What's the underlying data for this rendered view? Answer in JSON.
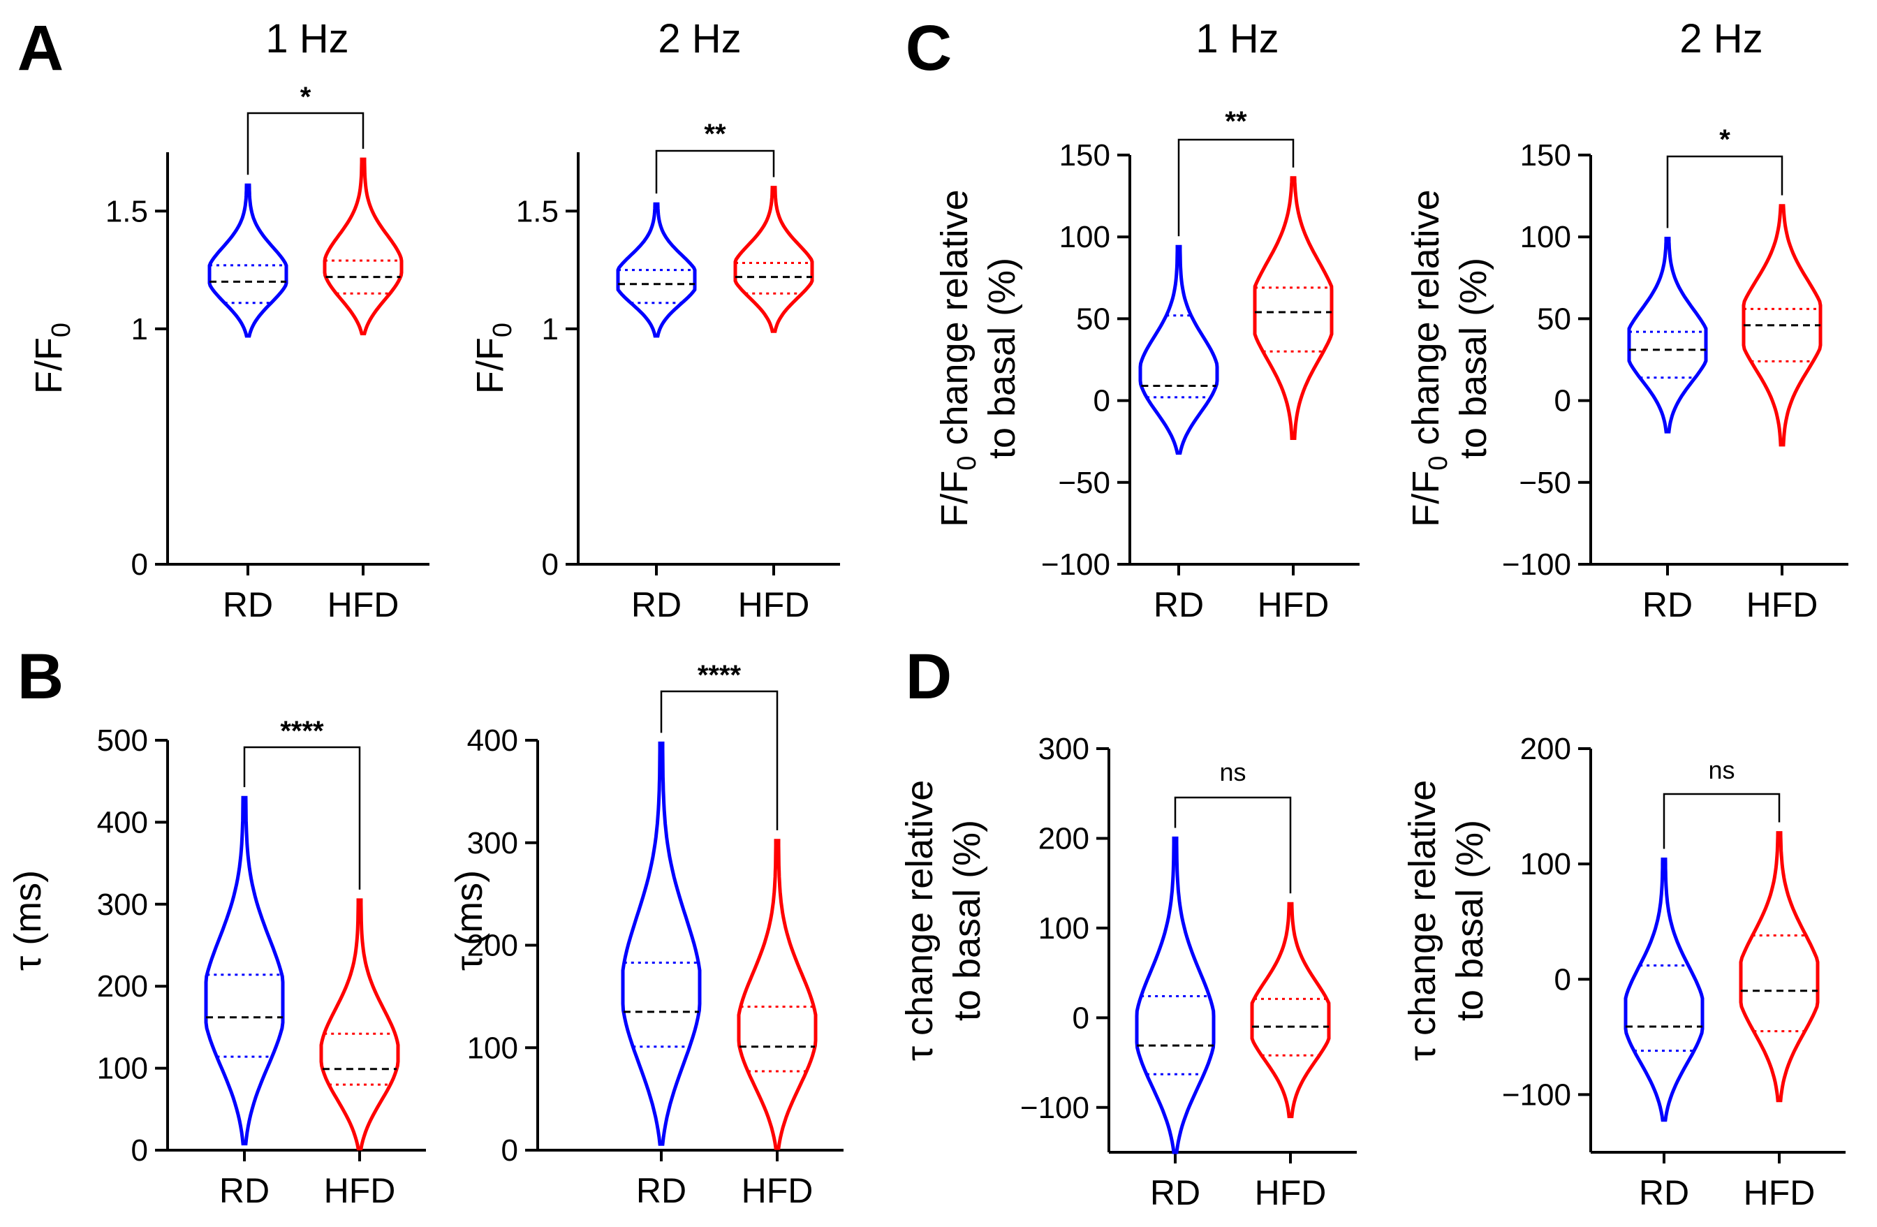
{
  "colors": {
    "RD": "#0000ff",
    "HFD": "#ff0000",
    "median": "#000000"
  },
  "panels": [
    {
      "letter": "A",
      "title": "1 Hz"
    },
    {
      "letter": "",
      "title": "2 Hz"
    },
    {
      "letter": "C",
      "title": "1 Hz"
    },
    {
      "letter": "",
      "title": "2 Hz"
    },
    {
      "letter": "B",
      "title": ""
    },
    {
      "letter": "",
      "title": ""
    },
    {
      "letter": "D",
      "title": ""
    },
    {
      "letter": "",
      "title": ""
    }
  ],
  "chart_data": [
    {
      "type": "violin",
      "panel": "A",
      "title": "1 Hz",
      "ylabel": "F/F0",
      "ylim": [
        0,
        1.75
      ],
      "yticks": [
        "0",
        "1",
        "1.5"
      ],
      "ytick_values": [
        0,
        1,
        1.5
      ],
      "categories": [
        "RD",
        "HFD"
      ],
      "series": [
        {
          "name": "RD",
          "q1": 1.11,
          "median": 1.2,
          "q3": 1.27,
          "min": 0.97,
          "max": 1.61
        },
        {
          "name": "HFD",
          "q1": 1.15,
          "median": 1.22,
          "q3": 1.29,
          "min": 0.98,
          "max": 1.72
        }
      ],
      "significance": "*"
    },
    {
      "type": "violin",
      "panel": "A",
      "title": "2 Hz",
      "ylabel": "F/F0",
      "ylim": [
        0,
        1.75
      ],
      "yticks": [
        "0",
        "1",
        "1.5"
      ],
      "ytick_values": [
        0,
        1,
        1.5
      ],
      "categories": [
        "RD",
        "HFD"
      ],
      "series": [
        {
          "name": "RD",
          "q1": 1.11,
          "median": 1.19,
          "q3": 1.25,
          "min": 0.97,
          "max": 1.53
        },
        {
          "name": "HFD",
          "q1": 1.15,
          "median": 1.22,
          "q3": 1.28,
          "min": 0.99,
          "max": 1.6
        }
      ],
      "significance": "**"
    },
    {
      "type": "violin",
      "panel": "C",
      "title": "1 Hz",
      "ylabel": "F/F0 change relative to basal (%)",
      "ylim": [
        -100,
        150
      ],
      "yticks": [
        "−100",
        "−50",
        "0",
        "50",
        "100",
        "150"
      ],
      "ytick_values": [
        -100,
        -50,
        0,
        50,
        100,
        150
      ],
      "categories": [
        "RD",
        "HFD"
      ],
      "series": [
        {
          "name": "RD",
          "q1": 2,
          "median": 9,
          "q3": 52,
          "min": -32,
          "max": 94
        },
        {
          "name": "HFD",
          "q1": 30,
          "median": 54,
          "q3": 69,
          "min": -23,
          "max": 136
        }
      ],
      "significance": "**"
    },
    {
      "type": "violin",
      "panel": "C",
      "title": "2 Hz",
      "ylabel": "F/F0 change relative to basal (%)",
      "ylim": [
        -100,
        150
      ],
      "yticks": [
        "−100",
        "−50",
        "0",
        "50",
        "100",
        "150"
      ],
      "ytick_values": [
        -100,
        -50,
        0,
        50,
        100,
        150
      ],
      "categories": [
        "RD",
        "HFD"
      ],
      "series": [
        {
          "name": "RD",
          "q1": 14,
          "median": 31,
          "q3": 42,
          "min": -19,
          "max": 99
        },
        {
          "name": "HFD",
          "q1": 24,
          "median": 46,
          "q3": 56,
          "min": -27,
          "max": 119
        }
      ],
      "significance": "*"
    },
    {
      "type": "violin",
      "panel": "B",
      "title": "",
      "ylabel": "τ (ms)",
      "ylim": [
        0,
        500
      ],
      "yticks": [
        "0",
        "100",
        "200",
        "300",
        "400",
        "500"
      ],
      "ytick_values": [
        0,
        100,
        200,
        300,
        400,
        500
      ],
      "categories": [
        "RD",
        "HFD"
      ],
      "series": [
        {
          "name": "RD",
          "q1": 114,
          "median": 162,
          "q3": 214,
          "min": 8,
          "max": 430
        },
        {
          "name": "HFD",
          "q1": 80,
          "median": 99,
          "q3": 142,
          "min": 2,
          "max": 305
        }
      ],
      "significance": "****"
    },
    {
      "type": "violin",
      "panel": "B",
      "title": "",
      "ylabel": "τ (ms)",
      "ylim": [
        0,
        400
      ],
      "yticks": [
        "0",
        "100",
        "200",
        "300",
        "400"
      ],
      "ytick_values": [
        0,
        100,
        200,
        300,
        400
      ],
      "categories": [
        "RD",
        "HFD"
      ],
      "series": [
        {
          "name": "RD",
          "q1": 101,
          "median": 135,
          "q3": 183,
          "min": 6,
          "max": 397
        },
        {
          "name": "HFD",
          "q1": 77,
          "median": 101,
          "q3": 140,
          "min": 2,
          "max": 302
        }
      ],
      "significance": "****"
    },
    {
      "type": "violin",
      "panel": "D",
      "title": "",
      "ylabel": "τ change relative to basal (%)",
      "ylim": [
        -150,
        300
      ],
      "yticks": [
        "−100",
        "0",
        "100",
        "200",
        "300"
      ],
      "ytick_values": [
        -100,
        0,
        100,
        200,
        300
      ],
      "categories": [
        "RD",
        "HFD"
      ],
      "series": [
        {
          "name": "RD",
          "q1": -63,
          "median": -31,
          "q3": 24,
          "min": -150,
          "max": 200
        },
        {
          "name": "HFD",
          "q1": -42,
          "median": -10,
          "q3": 21,
          "min": -110,
          "max": 127
        }
      ],
      "significance": "ns"
    },
    {
      "type": "violin",
      "panel": "D",
      "title": "",
      "ylabel": "τ change relative to basal (%)",
      "ylim": [
        -150,
        200
      ],
      "yticks": [
        "−100",
        "0",
        "100",
        "200"
      ],
      "ytick_values": [
        -100,
        0,
        100,
        200
      ],
      "categories": [
        "RD",
        "HFD"
      ],
      "series": [
        {
          "name": "RD",
          "q1": -62,
          "median": -41,
          "q3": 12,
          "min": -122,
          "max": 104
        },
        {
          "name": "HFD",
          "q1": -45,
          "median": -10,
          "q3": 38,
          "min": -105,
          "max": 127
        }
      ],
      "significance": "ns"
    }
  ]
}
